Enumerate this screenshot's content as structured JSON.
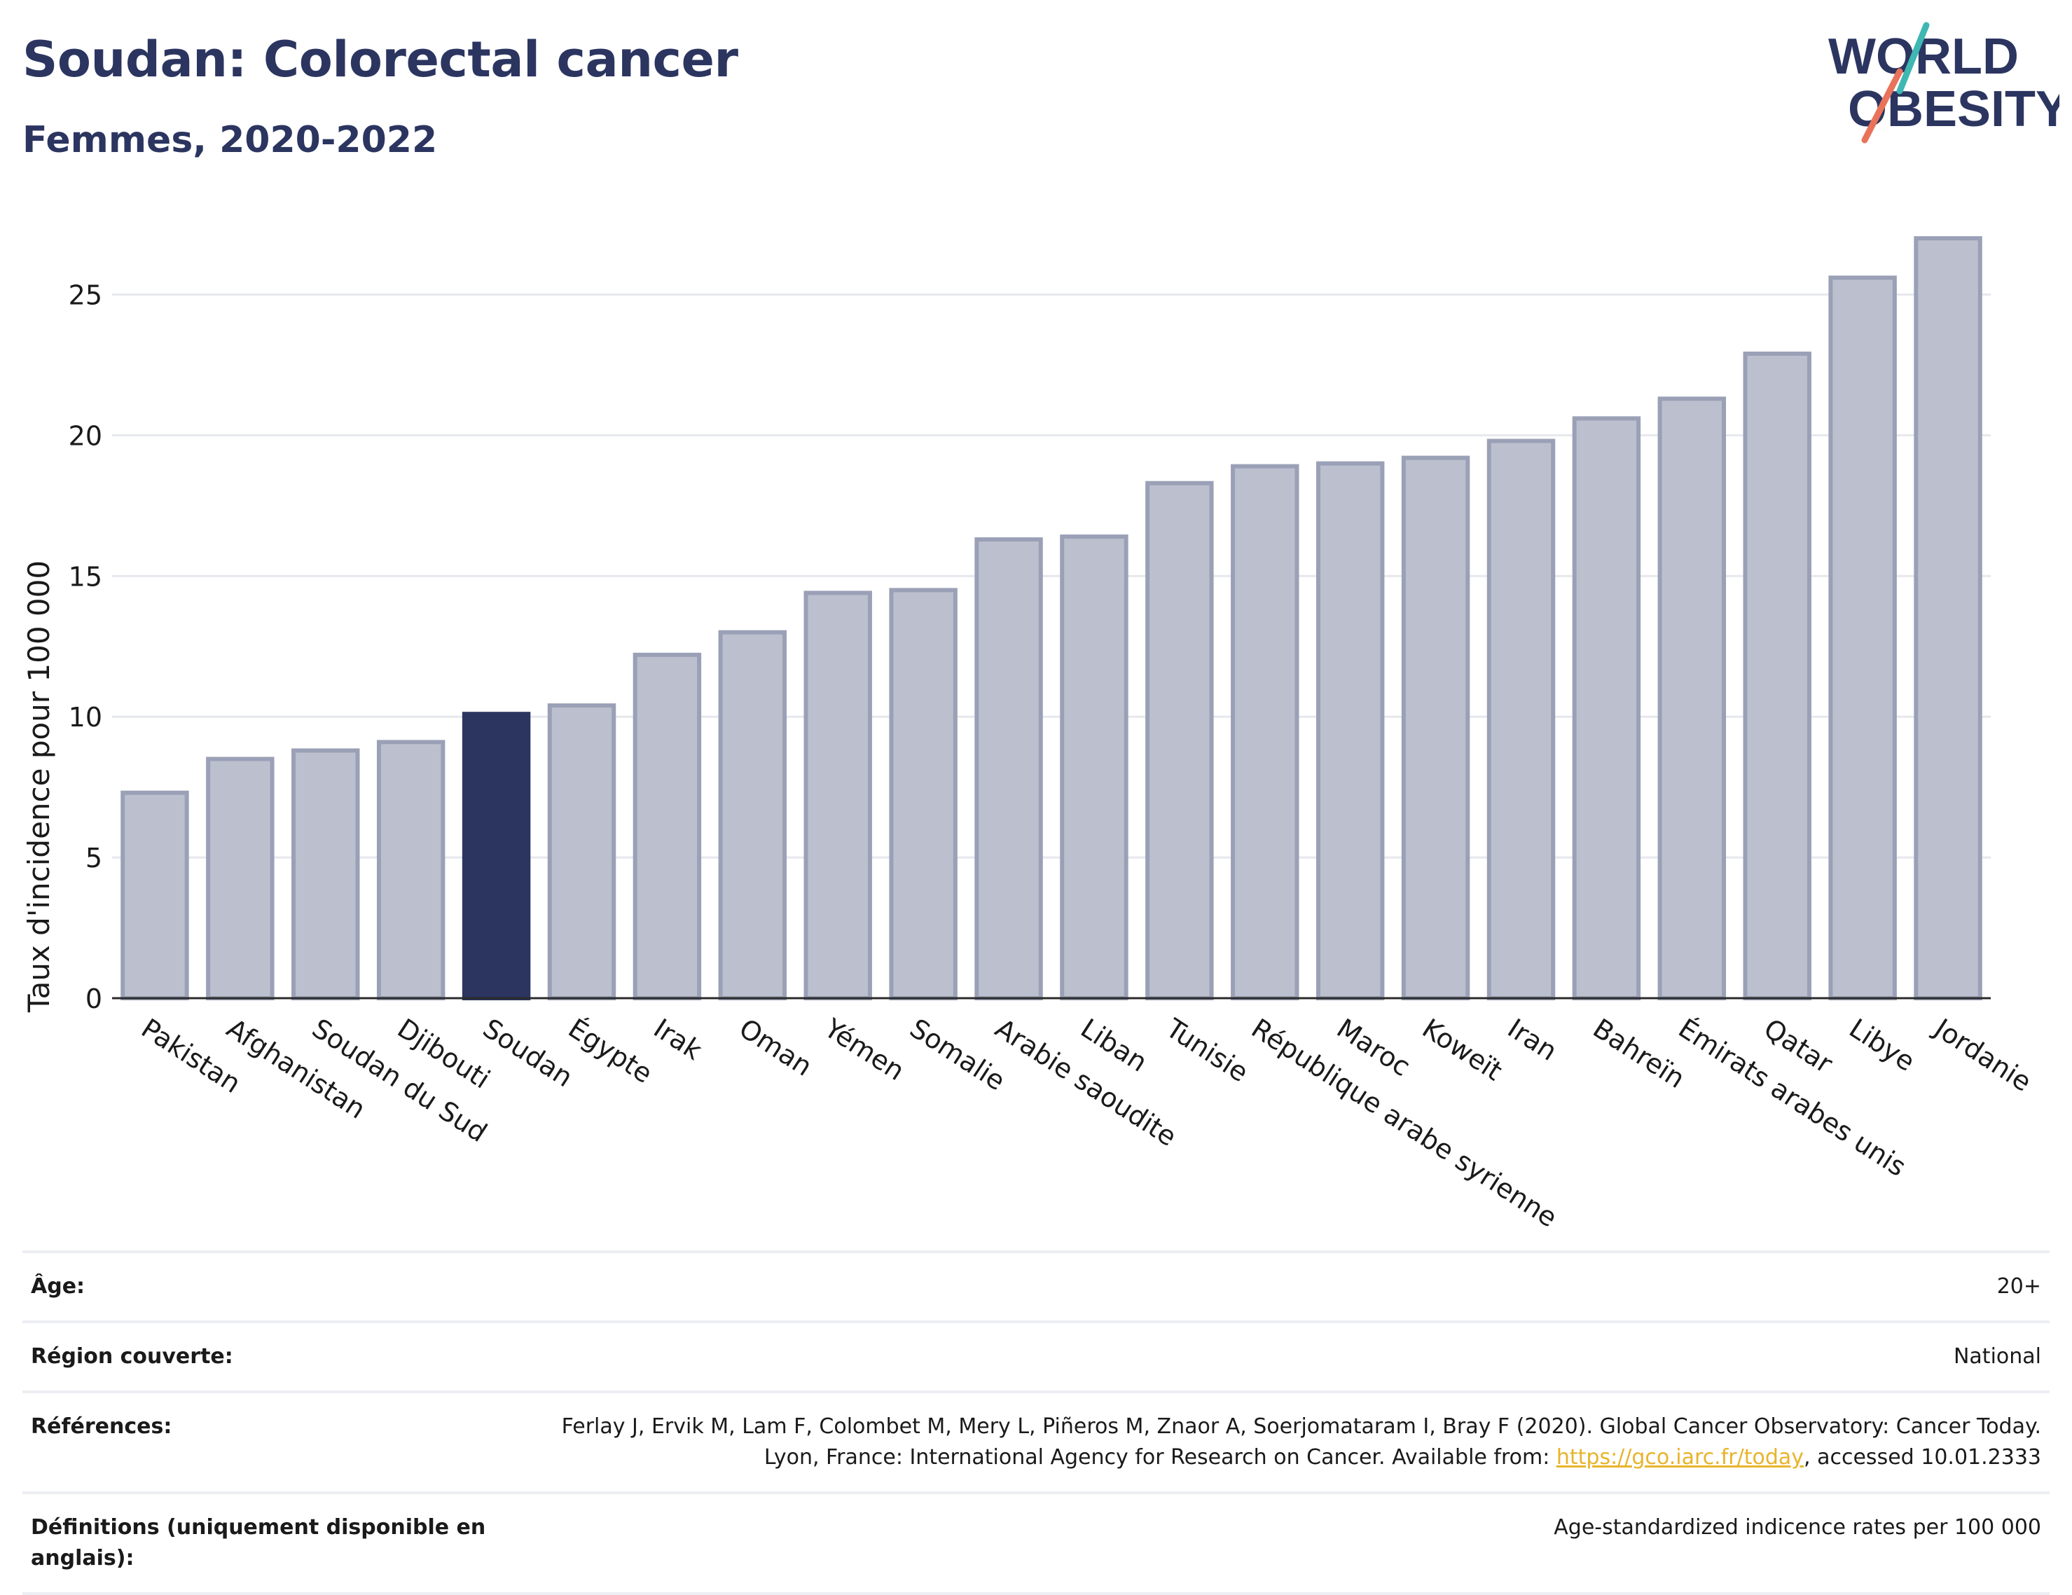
{
  "header": {
    "title": "Soudan: Colorectal cancer",
    "subtitle": "Femmes, 2020-2022",
    "logo_line1": "WORLD",
    "logo_line2": "OBESITY"
  },
  "chart_data": {
    "type": "bar",
    "title": "Soudan: Colorectal cancer",
    "subtitle": "Femmes, 2020-2022",
    "ylabel": "Taux d'incidence pour 100 000",
    "xlabel": "",
    "ylim": [
      0,
      28
    ],
    "yticks": [
      0,
      5,
      10,
      15,
      20,
      25
    ],
    "grid": true,
    "highlight": "Soudan",
    "categories": [
      "Pakistan",
      "Afghanistan",
      "Soudan du Sud",
      "Djibouti",
      "Soudan",
      "Égypte",
      "Irak",
      "Oman",
      "Yémen",
      "Somalie",
      "Arabie saoudite",
      "Liban",
      "Tunisie",
      "République arabe syrienne",
      "Maroc",
      "Koweït",
      "Iran",
      "Bahreïn",
      "Émirats arabes unis",
      "Qatar",
      "Libye",
      "Jordanie"
    ],
    "values": [
      7.3,
      8.5,
      8.8,
      9.1,
      10.1,
      10.4,
      12.2,
      13.0,
      14.4,
      14.5,
      16.3,
      16.4,
      18.3,
      18.9,
      19.0,
      19.2,
      19.8,
      20.6,
      21.3,
      22.9,
      25.6,
      27.0
    ],
    "colors": {
      "bar": "#bcc0ce",
      "bar_border": "#9aa0b6",
      "highlight": "#2b3560",
      "grid": "#e6e8ee",
      "axis": "#2b2b2b"
    }
  },
  "meta": {
    "age_label": "Âge:",
    "age_value": "20+",
    "region_label": "Région couverte:",
    "region_value": "National",
    "refs_label": "Références:",
    "refs_text_1": "Ferlay J, Ervik M, Lam F, Colombet M, Mery L, Piñeros M, Znaor A, Soerjomataram I, Bray F (2020). Global Cancer Observatory: Cancer Today. Lyon, France: International Agency for Research on Cancer. Available from: ",
    "refs_link": "https://gco.iarc.fr/today",
    "refs_text_2": ", accessed 10.01.2333",
    "defs_label": "Définitions (uniquement disponible en anglais):",
    "defs_value": "Age-standardized indicence rates per 100 000"
  }
}
